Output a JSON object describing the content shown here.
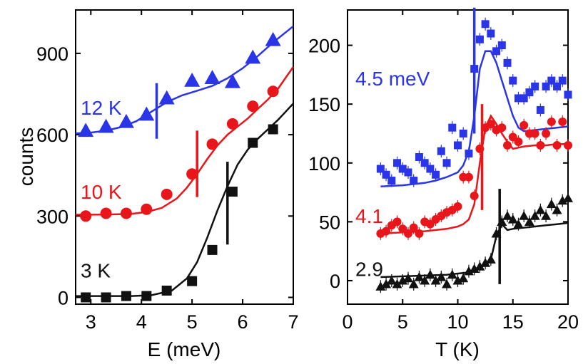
{
  "chart_data": [
    {
      "type": "scatter",
      "xlabel": "E (meV)",
      "ylabel": "counts",
      "xlim": [
        2.7,
        7.0
      ],
      "ylim": [
        -25,
        1060
      ],
      "xticks": [
        "3",
        "4",
        "5",
        "6",
        "7"
      ],
      "yticks": [
        "0",
        "300",
        "600",
        "900"
      ],
      "series": [
        {
          "name": "12 K",
          "color": "#2b35e8",
          "marker": "triangle",
          "x": [
            2.9,
            3.3,
            3.7,
            4.1,
            4.5,
            5.0,
            5.4,
            5.8,
            6.2,
            6.6
          ],
          "y": [
            615,
            630,
            648,
            675,
            735,
            800,
            810,
            795,
            885,
            950
          ],
          "fit": {
            "x": [
              2.7,
              3.0,
              3.3,
              3.6,
              3.9,
              4.2,
              4.5,
              4.8,
              5.1,
              5.4,
              5.7,
              6.0,
              6.3,
              6.6,
              7.0
            ],
            "y": [
              605,
              608,
              615,
              628,
              650,
              685,
              720,
              745,
              762,
              780,
              808,
              845,
              890,
              940,
              1000
            ]
          },
          "marker_line": {
            "x": 4.3,
            "y": [
              585,
              790
            ]
          },
          "label_y": 700
        },
        {
          "name": "10 K",
          "color": "#e8161b",
          "marker": "circle",
          "x": [
            2.9,
            3.3,
            3.7,
            4.1,
            4.5,
            5.0,
            5.4,
            5.8,
            6.2,
            6.6
          ],
          "y": [
            300,
            310,
            310,
            325,
            380,
            455,
            565,
            640,
            705,
            760
          ],
          "fit": {
            "x": [
              2.7,
              3.0,
              3.4,
              3.8,
              4.1,
              4.4,
              4.7,
              4.9,
              5.1,
              5.3,
              5.5,
              5.7,
              5.9,
              6.1,
              6.3,
              6.5,
              6.7,
              7.0
            ],
            "y": [
              305,
              305,
              306,
              308,
              315,
              330,
              365,
              405,
              455,
              510,
              560,
              600,
              630,
              660,
              695,
              730,
              770,
              850
            ]
          },
          "marker_line": {
            "x": 5.1,
            "y": [
              370,
              615
            ]
          },
          "label_y": 390
        },
        {
          "name": "3 K",
          "color": "#111111",
          "marker": "square",
          "x": [
            2.9,
            3.3,
            3.7,
            4.1,
            4.5,
            5.0,
            5.4,
            5.8,
            6.2,
            6.6
          ],
          "y": [
            0,
            0,
            5,
            5,
            25,
            60,
            175,
            390,
            570,
            620
          ],
          "fit": {
            "x": [
              2.7,
              3.0,
              3.4,
              3.8,
              4.2,
              4.6,
              4.9,
              5.1,
              5.3,
              5.5,
              5.7,
              5.9,
              6.1,
              6.3,
              6.5,
              6.7,
              7.0
            ],
            "y": [
              5,
              5,
              5,
              5,
              8,
              25,
              70,
              130,
              220,
              320,
              410,
              490,
              545,
              585,
              620,
              655,
              715
            ]
          },
          "marker_line": {
            "x": 5.7,
            "y": [
              195,
              500
            ]
          },
          "label_y": 100
        }
      ]
    },
    {
      "type": "scatter",
      "xlabel": "T (K)",
      "ylabel": "",
      "xlim": [
        0,
        20
      ],
      "ylim": [
        -20,
        230
      ],
      "xticks": [
        "0",
        "5",
        "10",
        "15",
        "20"
      ],
      "yticks": [
        "0",
        "50",
        "100",
        "150",
        "200"
      ],
      "series": [
        {
          "name": "4.5 meV",
          "color": "#2b35e8",
          "marker": "square",
          "x": [
            3,
            3.5,
            4,
            4.5,
            5,
            5.5,
            6,
            6.5,
            7,
            7.5,
            8,
            8.5,
            9,
            9.5,
            10,
            10.5,
            11,
            11.5,
            12,
            12.5,
            13,
            13.5,
            14,
            14.5,
            15,
            15.5,
            16,
            16.5,
            17,
            17.5,
            18,
            18.5,
            19,
            19.5,
            20
          ],
          "y": [
            95,
            90,
            85,
            100,
            95,
            92,
            85,
            105,
            100,
            95,
            90,
            110,
            100,
            130,
            115,
            125,
            108,
            180,
            205,
            218,
            210,
            195,
            200,
            185,
            170,
            155,
            155,
            160,
            165,
            145,
            165,
            170,
            165,
            170,
            158
          ],
          "fit": {
            "x": [
              3,
              5,
              7,
              8,
              9,
              10,
              10.5,
              11,
              11.5,
              12,
              12.5,
              13,
              13.5,
              14,
              14.5,
              15,
              15.5,
              16,
              17,
              18,
              19,
              20
            ],
            "y": [
              80,
              81,
              83,
              85,
              88,
              92,
              98,
              110,
              140,
              180,
              195,
              195,
              185,
              170,
              155,
              140,
              130,
              127,
              128,
              129,
              130,
              131
            ]
          },
          "marker_line": {
            "x": 11.5,
            "y": [
              125,
              232
            ]
          },
          "label_y": 172
        },
        {
          "name": "4.1",
          "color": "#e8161b",
          "marker": "circle",
          "x": [
            3,
            3.5,
            4,
            4.5,
            5,
            5.5,
            6,
            6.5,
            7,
            7.5,
            8,
            8.5,
            9,
            9.5,
            10,
            10.5,
            11,
            11.5,
            12,
            12.5,
            13,
            13.5,
            14,
            14.5,
            15,
            15.5,
            16,
            16.5,
            17,
            17.5,
            18,
            18.5,
            19,
            19.5,
            20
          ],
          "y": [
            40,
            42,
            47,
            50,
            44,
            40,
            45,
            40,
            50,
            48,
            52,
            55,
            58,
            60,
            63,
            88,
            88,
            72,
            112,
            130,
            133,
            128,
            130,
            115,
            122,
            118,
            132,
            125,
            125,
            115,
            125,
            135,
            115,
            135,
            115
          ],
          "fit": {
            "x": [
              3,
              5,
              7,
              8,
              9,
              10,
              10.5,
              11,
              11.5,
              12,
              12.5,
              13,
              13.5,
              14,
              14.5,
              15,
              15.5,
              16,
              17,
              18,
              19,
              20
            ],
            "y": [
              40,
              41,
              42,
              43,
              44,
              46,
              48,
              52,
              65,
              100,
              130,
              140,
              133,
              125,
              118,
              112,
              113,
              114,
              115,
              115,
              116,
              116
            ]
          },
          "marker_line": {
            "x": 12.2,
            "y": [
              60,
              150
            ]
          },
          "label_y": 55
        },
        {
          "name": "2.9",
          "color": "#111111",
          "marker": "triangle",
          "x": [
            3,
            3.5,
            4,
            4.5,
            5,
            5.5,
            6,
            6.5,
            7,
            7.5,
            8,
            8.5,
            9,
            9.5,
            10,
            10.5,
            11,
            11.5,
            12,
            12.5,
            13,
            13.5,
            14,
            14.5,
            15,
            15.5,
            16,
            16.5,
            17,
            17.5,
            18,
            18.5,
            19,
            19.5,
            20
          ],
          "y": [
            -5,
            -3,
            0,
            -3,
            0,
            2,
            -3,
            3,
            0,
            5,
            0,
            3,
            -3,
            5,
            0,
            2,
            8,
            10,
            12,
            15,
            18,
            40,
            50,
            55,
            52,
            48,
            55,
            50,
            55,
            60,
            55,
            65,
            60,
            68,
            70
          ],
          "fit": {
            "x": [
              3,
              6,
              9,
              11,
              12,
              13,
              13.5,
              14,
              14.5,
              15,
              16,
              17,
              18,
              19,
              20
            ],
            "y": [
              3,
              4,
              5,
              7,
              10,
              18,
              38,
              48,
              43,
              44,
              45,
              46,
              47,
              48,
              49
            ]
          },
          "marker_line": {
            "x": 13.8,
            "y": [
              -3,
              78
            ]
          },
          "label_y": 10
        }
      ]
    }
  ]
}
